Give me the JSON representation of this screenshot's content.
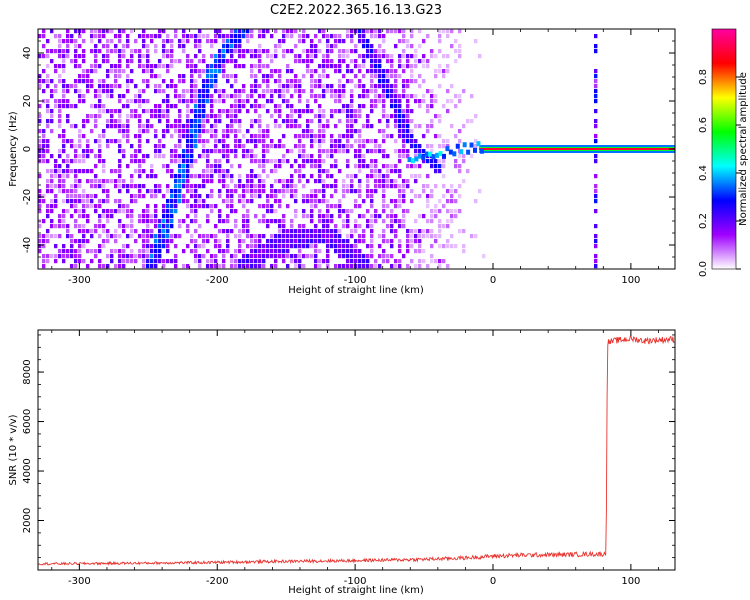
{
  "chart_data": [
    {
      "type": "heatmap",
      "title": "C2E2.2022.365.16.13.G23",
      "xlabel": "Height of straight line (km)",
      "ylabel": "Frequency (Hz)",
      "xlim": [
        -330,
        132
      ],
      "ylim": [
        -50,
        50
      ],
      "x_ticks": [
        "-300",
        "-200",
        "-100",
        "0",
        "100"
      ],
      "x_tick_values": [
        -300,
        -200,
        -100,
        0,
        100
      ],
      "y_ticks": [
        "-40",
        "-20",
        "0",
        "20",
        "40"
      ],
      "y_tick_values": [
        -40,
        -20,
        0,
        20,
        40
      ],
      "grid": false,
      "colorbar": {
        "label": "Normalized spectral amplitude",
        "range": [
          0,
          1
        ],
        "ticks": [
          "0.0",
          "0.2",
          "0.4",
          "0.6",
          "0.8"
        ],
        "tick_values": [
          0,
          0.2,
          0.4,
          0.6,
          0.8
        ],
        "colormap": [
          "#ffffff",
          "#9f00ff",
          "#0000ff",
          "#00ffff",
          "#00ff00",
          "#ffff00",
          "#ff0000",
          "#ff00a0"
        ]
      },
      "features": [
        {
          "name": "rising-track-left",
          "x": [
            -248,
            -236,
            -222,
            -208,
            -196,
            -180
          ],
          "y": [
            -50,
            -30,
            -5,
            25,
            40,
            50
          ]
        },
        {
          "name": "descending-track",
          "x": [
            -98,
            -84,
            -72,
            -62,
            -52,
            -40
          ],
          "y": [
            50,
            35,
            20,
            5,
            -2,
            -8
          ]
        },
        {
          "name": "carrier-line",
          "x": [
            -62,
            132
          ],
          "y": [
            0,
            0
          ]
        },
        {
          "name": "lower-arc",
          "x": [
            -180,
            -150,
            -120,
            -95
          ],
          "y": [
            -48,
            -38,
            -36,
            -48
          ]
        },
        {
          "name": "vertical-artifact",
          "x": [
            75,
            75
          ],
          "y": [
            -50,
            50
          ]
        }
      ]
    },
    {
      "type": "line",
      "xlabel": "Height of straight line (km)",
      "ylabel": "SNR (10 * v/v)",
      "xlim": [
        -330,
        132
      ],
      "ylim": [
        0,
        9700
      ],
      "x_ticks": [
        "-300",
        "-200",
        "-100",
        "0",
        "100"
      ],
      "x_tick_values": [
        -300,
        -200,
        -100,
        0,
        100
      ],
      "y_ticks": [
        "2000",
        "4000",
        "6000",
        "8000"
      ],
      "y_tick_values": [
        2000,
        4000,
        6000,
        8000
      ],
      "grid": false,
      "series": [
        {
          "color": "#e8342f",
          "x": [
            -330,
            -300,
            -250,
            -200,
            -150,
            -100,
            -50,
            -20,
            0,
            20,
            50,
            70,
            82,
            83,
            90,
            100,
            110,
            120,
            132
          ],
          "y": [
            250,
            260,
            280,
            310,
            350,
            380,
            430,
            490,
            560,
            600,
            620,
            640,
            640,
            9200,
            9280,
            9350,
            9260,
            9300,
            9330
          ]
        }
      ]
    }
  ]
}
